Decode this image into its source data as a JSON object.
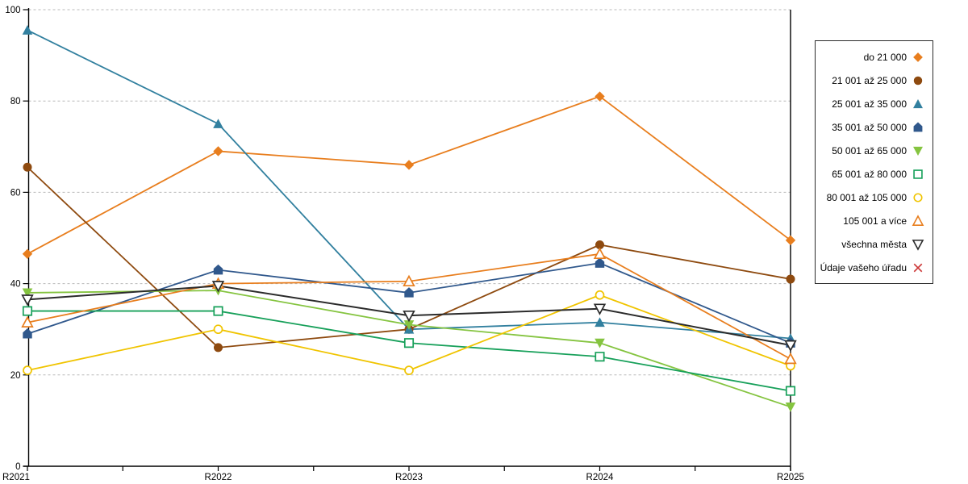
{
  "chart_data": {
    "type": "line",
    "title": "",
    "xlabel": "",
    "ylabel": "",
    "categories": [
      "R2021",
      "R2022",
      "R2023",
      "R2024",
      "R2025"
    ],
    "ylim": [
      0,
      100
    ],
    "yticks": [
      0,
      20,
      40,
      60,
      80,
      100
    ],
    "grid": "horizontal-dashed",
    "grid_color": "#b8b8b8",
    "axis_color": "#000000",
    "legend_position": "right",
    "series": [
      {
        "name": "do 21 000",
        "color": "#E87E1E",
        "marker": "diamond",
        "fill": "solid",
        "values": [
          46.5,
          69,
          66,
          81,
          49.5
        ]
      },
      {
        "name": "21 001 až 25 000",
        "color": "#8E4A0F",
        "marker": "circle",
        "fill": "solid",
        "values": [
          65.5,
          26,
          30,
          48.5,
          41
        ]
      },
      {
        "name": "25 001 až 35 000",
        "color": "#32809F",
        "marker": "triangle-up",
        "fill": "solid",
        "values": [
          95.5,
          75,
          30,
          31.5,
          28
        ]
      },
      {
        "name": "35 001 až 50 000",
        "color": "#30588C",
        "marker": "pentagon",
        "fill": "solid",
        "values": [
          29,
          43,
          38,
          44.5,
          27
        ]
      },
      {
        "name": "50 001 až 65 000",
        "color": "#85C440",
        "marker": "triangle-down",
        "fill": "solid",
        "values": [
          38,
          38.5,
          31,
          27,
          13
        ]
      },
      {
        "name": "65 001 až 80 000",
        "color": "#17A05A",
        "marker": "square",
        "fill": "open",
        "values": [
          34,
          34,
          27,
          24,
          16.5
        ]
      },
      {
        "name": "80 001 až 105 000",
        "color": "#F0C400",
        "marker": "circle",
        "fill": "open",
        "values": [
          21,
          30,
          21,
          37.5,
          22
        ]
      },
      {
        "name": "105 001 a více",
        "color": "#E87E1E",
        "marker": "triangle-up",
        "fill": "open",
        "values": [
          31.5,
          40,
          40.5,
          46.5,
          23.5
        ]
      },
      {
        "name": "všechna města",
        "color": "#2B2B2B",
        "marker": "triangle-down",
        "fill": "open",
        "values": [
          36.5,
          39.5,
          33,
          34.5,
          26.5
        ]
      },
      {
        "name": "Údaje vašeho úřadu",
        "color": "#CD3B3B",
        "marker": "x",
        "fill": "open",
        "values": [
          null,
          null,
          null,
          null,
          null
        ]
      }
    ]
  }
}
